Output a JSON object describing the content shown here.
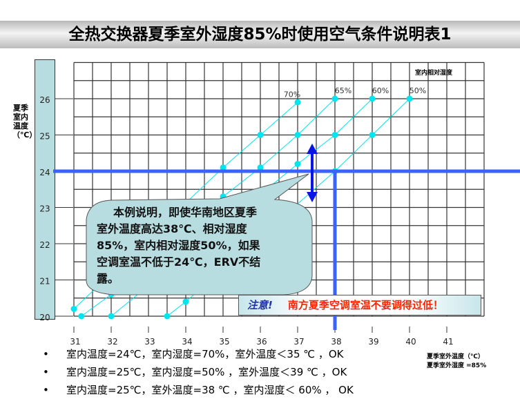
{
  "title": "全热交换器夏季室外湿度85%时使用空气条件说明表1",
  "chart_data": {
    "type": "line",
    "ylabel": "夏季室内温度（℃）",
    "xlabel_lines": [
      "夏季室外温度（℃）",
      "夏季室外湿度 =85%"
    ],
    "legend_title": "室内相对湿度",
    "xlim": [
      31,
      42
    ],
    "ylim": [
      20,
      27
    ],
    "x_ticks": [
      "31",
      "32",
      "33",
      "34",
      "35",
      "36",
      "37",
      "38",
      "39",
      "40",
      "41"
    ],
    "y_ticks": [
      "20",
      "21",
      "22",
      "23",
      "24",
      "25",
      "26"
    ],
    "grid": true,
    "series": [
      {
        "name": "70%",
        "points": [
          [
            31,
            20.2
          ],
          [
            35,
            24.1
          ],
          [
            36,
            25
          ],
          [
            37,
            25.9
          ]
        ]
      },
      {
        "name": "65%",
        "points": [
          [
            31.2,
            20
          ],
          [
            32,
            20.6
          ],
          [
            35,
            23.3
          ],
          [
            36,
            24.1
          ],
          [
            37,
            25
          ],
          [
            38,
            26
          ]
        ]
      },
      {
        "name": "60%",
        "points": [
          [
            32,
            20
          ],
          [
            37,
            24.2
          ],
          [
            38,
            25
          ],
          [
            39,
            26
          ]
        ]
      },
      {
        "name": "50%",
        "points": [
          [
            33.5,
            20
          ],
          [
            34,
            20.4
          ],
          [
            38,
            24
          ],
          [
            39,
            25
          ],
          [
            40,
            26
          ]
        ]
      }
    ],
    "reference_lines": {
      "indoor_temp": 24,
      "outdoor_temp": 38
    },
    "colors": {
      "series": "#00e5ee",
      "reference": "#3a62ff",
      "arrow": "#0a14e6"
    }
  },
  "callout": [
    "本例说明，即使华南地区夏季",
    "室外温度高达38℃、相对湿度",
    "85%，室内相对湿度50%，如果",
    "空调室温不低于24℃，ERV不结",
    "露。"
  ],
  "note": {
    "label": "注意!",
    "text": "南方夏季空调室温不要调得过低！"
  },
  "bullets": [
    "室内温度=24℃，室内湿度=70%，室外温度＜35 ℃ ，OK",
    "室内温度=25℃，室内湿度=50% ，室外温度＜39 ℃ ，OK",
    "室内温度=25℃，室外温度=38 ℃ ，室内湿度＜ 60% ，  OK"
  ]
}
